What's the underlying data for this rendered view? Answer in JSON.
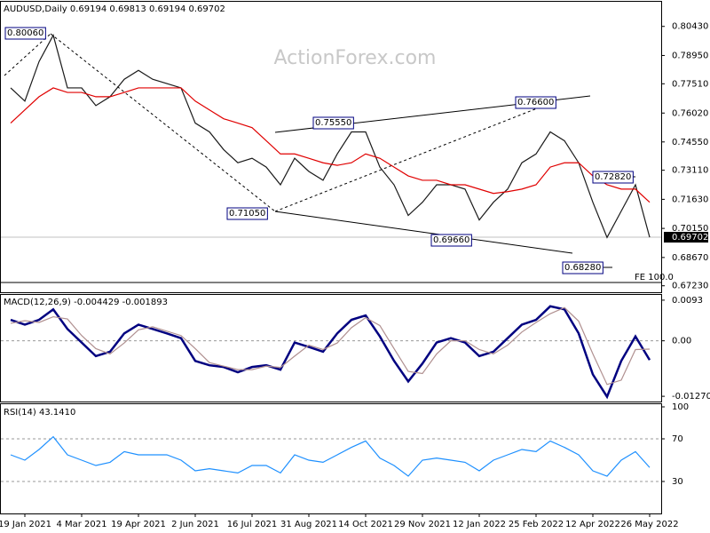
{
  "chart_data": [
    {
      "type": "line",
      "title": "AUDUSD,Daily  0.69194 0.69813 0.69194 0.69702",
      "watermark": "ActionForex.com",
      "series": [
        {
          "name": "AUDUSD",
          "color": "#1a1a1a",
          "values": [
            0.773,
            0.7663,
            0.7864,
            0.7998,
            0.773,
            0.773,
            0.764,
            0.7685,
            0.7774,
            0.7819,
            0.7774,
            0.7752,
            0.773,
            0.7551,
            0.7506,
            0.7416,
            0.7349,
            0.7372,
            0.7327,
            0.7237,
            0.7372,
            0.7305,
            0.726,
            0.7394,
            0.7506,
            0.7506,
            0.7327,
            0.7237,
            0.7081,
            0.7148,
            0.7237,
            0.7237,
            0.7215,
            0.7058,
            0.7148,
            0.7215,
            0.7349,
            0.7394,
            0.7506,
            0.7461,
            0.7349,
            0.7148,
            0.6969,
            0.7103,
            0.7237,
            0.697
          ]
        },
        {
          "name": "MA",
          "color": "#e00000",
          "values": [
            0.7551,
            0.7618,
            0.7685,
            0.773,
            0.7707,
            0.7707,
            0.7685,
            0.7685,
            0.7707,
            0.773,
            0.773,
            0.773,
            0.773,
            0.7663,
            0.7618,
            0.7573,
            0.7551,
            0.7528,
            0.7461,
            0.7394,
            0.7394,
            0.7372,
            0.7349,
            0.7336,
            0.7349,
            0.7394,
            0.7372,
            0.7327,
            0.7282,
            0.726,
            0.726,
            0.7237,
            0.7237,
            0.7215,
            0.7193,
            0.7202,
            0.7215,
            0.7237,
            0.7327,
            0.7349,
            0.7349,
            0.7282,
            0.7237,
            0.7215,
            0.7215,
            0.7148
          ]
        }
      ],
      "annotations": [
        "0.80060",
        "0.75550",
        "0.76600",
        "0.71050",
        "0.69660",
        "0.72820",
        "0.68280",
        "FE 100.0"
      ],
      "last_price": {
        "value": 0.69702,
        "label": "0.69702"
      },
      "ylim": [
        0.66855,
        0.81683
      ],
      "yticks": [
        {
          "value": 0.8043,
          "label": "0.80430"
        },
        {
          "value": 0.7895,
          "label": "0.78950"
        },
        {
          "value": 0.7751,
          "label": "0.77510"
        },
        {
          "value": 0.7602,
          "label": "0.76020"
        },
        {
          "value": 0.7455,
          "label": "0.74550"
        },
        {
          "value": 0.7311,
          "label": "0.73110"
        },
        {
          "value": 0.7163,
          "label": "0.71630"
        },
        {
          "value": 0.7015,
          "label": "0.70150"
        },
        {
          "value": 0.6867,
          "label": "0.68670"
        },
        {
          "value": 0.6723,
          "label": "0.67230"
        }
      ]
    },
    {
      "type": "line",
      "title": "MACD(12,26,9) -0.004429 -0.001893",
      "series": [
        {
          "name": "MACD",
          "color": "#000080",
          "values": [
            0.0048,
            0.0037,
            0.0048,
            0.0072,
            0.0027,
            -0.0004,
            -0.0035,
            -0.0025,
            0.0017,
            0.0037,
            0.0027,
            0.0017,
            0.0006,
            -0.0046,
            -0.0056,
            -0.006,
            -0.0072,
            -0.006,
            -0.0056,
            -0.0066,
            -0.0004,
            -0.0014,
            -0.0025,
            0.0017,
            0.0048,
            0.0058,
            0.001,
            -0.0046,
            -0.0093,
            -0.0052,
            -0.0004,
            0.0006,
            -0.0004,
            -0.0035,
            -0.0025,
            0.0006,
            0.0037,
            0.0048,
            0.0079,
            0.0072,
            0.0017,
            -0.0077,
            -0.0128,
            -0.0046,
            0.001,
            -0.0044
          ]
        },
        {
          "name": "Signal",
          "color": "#b09090",
          "values": [
            0.004,
            0.0046,
            0.0042,
            0.0055,
            0.005,
            0.0012,
            -0.0018,
            -0.003,
            -0.0005,
            0.0025,
            0.0032,
            0.0022,
            0.0012,
            -0.0018,
            -0.005,
            -0.0058,
            -0.0066,
            -0.0066,
            -0.0058,
            -0.0061,
            -0.0035,
            -0.001,
            -0.002,
            -0.0005,
            0.003,
            0.0053,
            0.0035,
            -0.0018,
            -0.007,
            -0.0075,
            -0.003,
            0,
            0,
            -0.002,
            -0.003,
            -0.001,
            0.002,
            0.0042,
            0.0062,
            0.0076,
            0.0045,
            -0.003,
            -0.01,
            -0.009,
            -0.002,
            -0.0019
          ]
        }
      ],
      "levels": [
        0
      ],
      "ylim": [
        -0.0139,
        0.0105
      ],
      "yticks": [
        0.0093,
        {
          "value": 0,
          "label": "0.00"
        },
        -0.012704
      ]
    },
    {
      "type": "line",
      "title": "RSI(14) 43.1410",
      "categories": [
        null,
        "19 Jan 2021",
        null,
        null,
        null,
        "4 Mar 2021",
        null,
        null,
        null,
        "19 Apr 2021",
        null,
        null,
        null,
        "2 Jun 2021",
        null,
        null,
        null,
        "16 Jul 2021",
        null,
        null,
        null,
        "31 Aug 2021",
        null,
        null,
        null,
        "14 Oct 2021",
        null,
        null,
        null,
        "29 Nov 2021",
        null,
        null,
        null,
        "12 Jan 2022",
        null,
        null,
        null,
        "25 Feb 2022",
        null,
        null,
        null,
        "12 Apr 2022",
        null,
        null,
        null,
        "26 May 2022"
      ],
      "series": [
        {
          "name": "RSI",
          "color": "#1e90ff",
          "values": [
            55,
            50,
            60,
            72,
            55,
            50,
            45,
            48,
            58,
            55,
            55,
            55,
            50,
            40,
            42,
            40,
            38,
            45,
            45,
            38,
            55,
            50,
            48,
            55,
            62,
            68,
            52,
            45,
            35,
            50,
            52,
            50,
            48,
            40,
            50,
            55,
            60,
            58,
            68,
            62,
            55,
            40,
            35,
            50,
            58,
            43.1
          ]
        }
      ],
      "levels": [
        70,
        30
      ],
      "ylim": [
        0,
        102.5
      ],
      "yticks": [
        100,
        70,
        30
      ]
    }
  ]
}
